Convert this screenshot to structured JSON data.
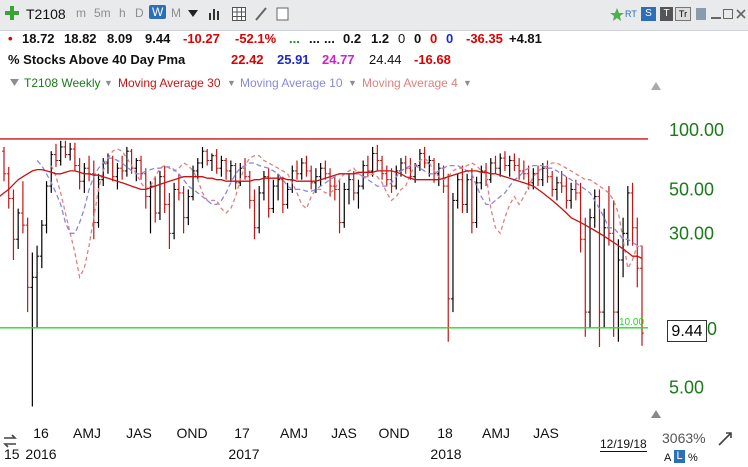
{
  "toolbar": {
    "symbol": "T2108",
    "timeframes": [
      "m",
      "5m",
      "h",
      "D",
      "W",
      "M"
    ],
    "active_timeframe": "W"
  },
  "quote": {
    "open": "18.72",
    "high": "18.82",
    "low": "8.09",
    "last": "9.44",
    "change": "-10.27",
    "change_pct": "-52.1%",
    "dots1": "...",
    "dots2": "...",
    "dots3": "...",
    "v1": "0.2",
    "v2": "1.2",
    "v3": "0",
    "v4": "0",
    "v5": "0",
    "v6": "0",
    "v7": "-36.35",
    "v8": "+4.81"
  },
  "indicator": {
    "name": "% Stocks Above 40 Day Pma",
    "ma30": "22.42",
    "ma10": "25.91",
    "ma4": "24.77",
    "val": "24.44",
    "chg": "-16.68"
  },
  "legend": {
    "series": "T2108 Weekly",
    "ma30": "Moving Average 30",
    "ma10": "Moving Average 10",
    "ma4": "Moving Average 4"
  },
  "colors": {
    "up_bar": "#000000",
    "down_bar": "#cc1111",
    "ma30": "#cc1111",
    "ma10": "#8888dd",
    "ma4": "#e08080",
    "upper_line": "#cc1111",
    "lower_line": "#22dd22",
    "axis_label": "#1a7a1a"
  },
  "chart_data": {
    "type": "bar",
    "scale": "log",
    "y_ticks": [
      "100.00",
      "50.00",
      "30.00",
      "5.00"
    ],
    "y_tick_values": [
      100,
      50,
      30,
      5
    ],
    "ylim": [
      3.5,
      150
    ],
    "x_period_labels": [
      "16",
      "AMJ",
      "JAS",
      "OND",
      "17",
      "AMJ",
      "JAS",
      "OND",
      "18",
      "AMJ",
      "JAS"
    ],
    "x_year_labels": [
      "2016",
      "2017",
      "2018"
    ],
    "x_left_partial": "15",
    "upper_line": 90,
    "lower_line": 10,
    "lower_line_label": "10.00",
    "last_price_tag": "9.44",
    "last_price_tag_suffix": "0",
    "date_label": "12/19/18",
    "zoom_label": "3063%",
    "weeks": 155,
    "x_week_index_start": 0,
    "ohlc_seed_note_hidden": false,
    "bars": [
      [
        78,
        82,
        55,
        60
      ],
      [
        60,
        65,
        40,
        45
      ],
      [
        45,
        50,
        22,
        28
      ],
      [
        28,
        40,
        25,
        38
      ],
      [
        38,
        55,
        30,
        33
      ],
      [
        33,
        36,
        12,
        16
      ],
      [
        16,
        24,
        4,
        18
      ],
      [
        18,
        26,
        10,
        23
      ],
      [
        23,
        35,
        20,
        33
      ],
      [
        33,
        55,
        30,
        52
      ],
      [
        52,
        78,
        48,
        75
      ],
      [
        75,
        85,
        65,
        70
      ],
      [
        70,
        88,
        66,
        82
      ],
      [
        82,
        88,
        72,
        75
      ],
      [
        75,
        86,
        70,
        80
      ],
      [
        80,
        86,
        62,
        66
      ],
      [
        66,
        72,
        50,
        55
      ],
      [
        55,
        68,
        48,
        64
      ],
      [
        64,
        74,
        55,
        60
      ],
      [
        60,
        70,
        28,
        34
      ],
      [
        34,
        60,
        32,
        56
      ],
      [
        56,
        72,
        52,
        68
      ],
      [
        68,
        76,
        60,
        72
      ],
      [
        72,
        74,
        55,
        58
      ],
      [
        58,
        68,
        50,
        64
      ],
      [
        64,
        74,
        56,
        62
      ],
      [
        62,
        82,
        58,
        78
      ],
      [
        78,
        80,
        60,
        64
      ],
      [
        64,
        72,
        55,
        70
      ],
      [
        70,
        74,
        56,
        60
      ],
      [
        60,
        64,
        40,
        46
      ],
      [
        46,
        55,
        30,
        52
      ],
      [
        52,
        58,
        34,
        38
      ],
      [
        38,
        62,
        35,
        58
      ],
      [
        58,
        66,
        38,
        42
      ],
      [
        42,
        48,
        25,
        30
      ],
      [
        30,
        54,
        28,
        50
      ],
      [
        50,
        60,
        44,
        48
      ],
      [
        48,
        52,
        30,
        36
      ],
      [
        36,
        50,
        33,
        46
      ],
      [
        46,
        66,
        44,
        62
      ],
      [
        62,
        72,
        56,
        68
      ],
      [
        68,
        82,
        64,
        78
      ],
      [
        78,
        80,
        66,
        70
      ],
      [
        70,
        76,
        62,
        74
      ],
      [
        74,
        80,
        60,
        64
      ],
      [
        64,
        74,
        58,
        70
      ],
      [
        70,
        72,
        56,
        62
      ],
      [
        62,
        70,
        55,
        66
      ],
      [
        66,
        68,
        50,
        54
      ],
      [
        54,
        68,
        52,
        64
      ],
      [
        64,
        72,
        56,
        58
      ],
      [
        58,
        62,
        40,
        44
      ],
      [
        44,
        50,
        28,
        32
      ],
      [
        32,
        52,
        30,
        48
      ],
      [
        48,
        62,
        44,
        58
      ],
      [
        58,
        64,
        36,
        40
      ],
      [
        40,
        56,
        38,
        52
      ],
      [
        52,
        60,
        44,
        56
      ],
      [
        56,
        58,
        38,
        42
      ],
      [
        42,
        54,
        40,
        50
      ],
      [
        50,
        66,
        48,
        62
      ],
      [
        62,
        70,
        56,
        60
      ],
      [
        60,
        72,
        56,
        68
      ],
      [
        68,
        74,
        58,
        62
      ],
      [
        62,
        66,
        50,
        54
      ],
      [
        54,
        64,
        48,
        58
      ],
      [
        58,
        68,
        52,
        64
      ],
      [
        64,
        70,
        56,
        60
      ],
      [
        60,
        64,
        46,
        52
      ],
      [
        52,
        58,
        44,
        50
      ],
      [
        50,
        56,
        30,
        34
      ],
      [
        34,
        54,
        32,
        50
      ],
      [
        50,
        60,
        42,
        56
      ],
      [
        56,
        62,
        44,
        48
      ],
      [
        48,
        56,
        40,
        52
      ],
      [
        52,
        70,
        50,
        66
      ],
      [
        66,
        74,
        58,
        62
      ],
      [
        62,
        82,
        58,
        76
      ],
      [
        76,
        84,
        62,
        70
      ],
      [
        70,
        74,
        56,
        60
      ],
      [
        60,
        66,
        52,
        56
      ],
      [
        56,
        64,
        48,
        52
      ],
      [
        52,
        66,
        50,
        62
      ],
      [
        62,
        72,
        58,
        68
      ],
      [
        68,
        74,
        60,
        64
      ],
      [
        64,
        72,
        56,
        58
      ],
      [
        58,
        68,
        54,
        66
      ],
      [
        66,
        80,
        62,
        76
      ],
      [
        76,
        82,
        64,
        68
      ],
      [
        68,
        74,
        58,
        70
      ],
      [
        70,
        72,
        54,
        60
      ],
      [
        60,
        68,
        52,
        64
      ],
      [
        64,
        66,
        48,
        52
      ],
      [
        52,
        60,
        8.5,
        14
      ],
      [
        14,
        48,
        12,
        44
      ],
      [
        44,
        60,
        40,
        56
      ],
      [
        56,
        66,
        38,
        42
      ],
      [
        42,
        60,
        38,
        56
      ],
      [
        56,
        64,
        30,
        34
      ],
      [
        34,
        58,
        32,
        54
      ],
      [
        54,
        66,
        50,
        62
      ],
      [
        62,
        68,
        52,
        56
      ],
      [
        56,
        72,
        54,
        68
      ],
      [
        68,
        74,
        60,
        64
      ],
      [
        64,
        76,
        58,
        72
      ],
      [
        72,
        78,
        62,
        66
      ],
      [
        66,
        74,
        58,
        70
      ],
      [
        70,
        76,
        62,
        66
      ],
      [
        66,
        72,
        56,
        62
      ],
      [
        62,
        70,
        56,
        60
      ],
      [
        60,
        66,
        50,
        54
      ],
      [
        54,
        64,
        50,
        60
      ],
      [
        60,
        66,
        52,
        56
      ],
      [
        56,
        68,
        52,
        64
      ],
      [
        64,
        70,
        54,
        58
      ],
      [
        58,
        62,
        46,
        50
      ],
      [
        50,
        58,
        44,
        54
      ],
      [
        54,
        62,
        48,
        52
      ],
      [
        52,
        58,
        40,
        44
      ],
      [
        44,
        54,
        40,
        50
      ],
      [
        50,
        56,
        44,
        48
      ],
      [
        48,
        54,
        24,
        28
      ],
      [
        28,
        36,
        9,
        12
      ],
      [
        12,
        40,
        10,
        36
      ],
      [
        36,
        50,
        32,
        46
      ],
      [
        46,
        50,
        8,
        12
      ],
      [
        12,
        40,
        10,
        32
      ],
      [
        32,
        52,
        26,
        30
      ],
      [
        30,
        44,
        9,
        12
      ],
      [
        12,
        28,
        8.5,
        22
      ],
      [
        22,
        36,
        18,
        30
      ],
      [
        30,
        52,
        26,
        48
      ],
      [
        48,
        54,
        26,
        32
      ],
      [
        32,
        36,
        16,
        20
      ],
      [
        20,
        26,
        8.1,
        9.4
      ]
    ],
    "ma30": [
      60,
      58,
      55,
      52,
      50,
      48,
      45,
      44,
      46,
      48,
      50,
      53,
      56,
      58,
      60,
      62,
      63,
      63,
      62,
      61,
      60,
      60,
      61,
      62,
      62,
      61,
      60,
      60,
      59,
      59,
      58,
      57,
      56,
      55,
      54,
      53,
      52,
      51,
      50,
      50,
      51,
      52,
      53,
      54,
      55,
      56,
      57,
      58,
      58,
      58,
      58,
      58,
      57,
      57,
      56,
      56,
      55,
      55,
      55,
      55,
      55,
      55,
      56,
      56,
      57,
      57,
      57,
      57,
      57,
      56,
      56,
      55,
      55,
      55,
      55,
      55,
      56,
      57,
      58,
      59,
      60,
      60,
      60,
      60,
      61,
      61,
      61,
      61,
      62,
      62,
      62,
      62,
      61,
      60,
      58,
      57,
      56,
      56,
      56,
      56,
      56,
      56,
      57,
      58,
      59,
      60,
      61,
      62,
      62,
      62,
      61,
      61,
      60,
      60,
      59,
      58,
      57,
      56,
      55,
      54,
      53,
      52,
      50,
      48,
      46,
      44,
      42,
      40,
      38,
      36,
      35,
      34,
      33,
      32,
      31,
      30,
      29,
      28,
      27,
      26,
      25,
      24,
      23,
      23,
      22.4
    ],
    "ma10": [
      70,
      66,
      60,
      54,
      48,
      42,
      34,
      30,
      30,
      34,
      40,
      50,
      58,
      64,
      68,
      72,
      72,
      70,
      68,
      65,
      62,
      60,
      60,
      62,
      63,
      64,
      64,
      65,
      65,
      63,
      60,
      56,
      52,
      50,
      48,
      46,
      44,
      42,
      42,
      44,
      48,
      54,
      60,
      64,
      66,
      68,
      68,
      66,
      65,
      64,
      62,
      60,
      56,
      52,
      50,
      50,
      50,
      49,
      49,
      50,
      52,
      54,
      56,
      58,
      60,
      60,
      60,
      60,
      60,
      58,
      56,
      54,
      52,
      52,
      52,
      54,
      58,
      62,
      64,
      66,
      66,
      64,
      62,
      60,
      60,
      62,
      64,
      66,
      66,
      66,
      64,
      62,
      60,
      52,
      46,
      42,
      42,
      44,
      46,
      48,
      52,
      56,
      58,
      62,
      64,
      66,
      66,
      66,
      64,
      64,
      62,
      60,
      58,
      56,
      54,
      52,
      50,
      48,
      44,
      40,
      36,
      32,
      32,
      30,
      28,
      28,
      27,
      26,
      25.9
    ],
    "ma4": [
      66,
      58,
      48,
      38,
      30,
      24,
      18,
      20,
      26,
      36,
      50,
      62,
      72,
      78,
      80,
      78,
      72,
      66,
      60,
      54,
      50,
      52,
      58,
      64,
      66,
      64,
      62,
      64,
      68,
      66,
      62,
      56,
      48,
      44,
      44,
      44,
      40,
      38,
      40,
      46,
      56,
      66,
      72,
      74,
      74,
      70,
      68,
      66,
      64,
      62,
      60,
      54,
      48,
      42,
      40,
      46,
      50,
      50,
      48,
      48,
      50,
      56,
      60,
      62,
      64,
      60,
      58,
      58,
      60,
      58,
      54,
      48,
      44,
      46,
      50,
      52,
      60,
      66,
      70,
      72,
      68,
      62,
      58,
      56,
      58,
      62,
      64,
      64,
      66,
      68,
      66,
      62,
      60,
      40,
      32,
      30,
      36,
      42,
      46,
      42,
      46,
      52,
      58,
      62,
      64,
      66,
      68,
      68,
      66,
      64,
      62,
      60,
      58,
      56,
      56,
      54,
      52,
      50,
      48,
      44,
      38,
      28,
      20,
      22,
      26,
      24.8
    ]
  }
}
